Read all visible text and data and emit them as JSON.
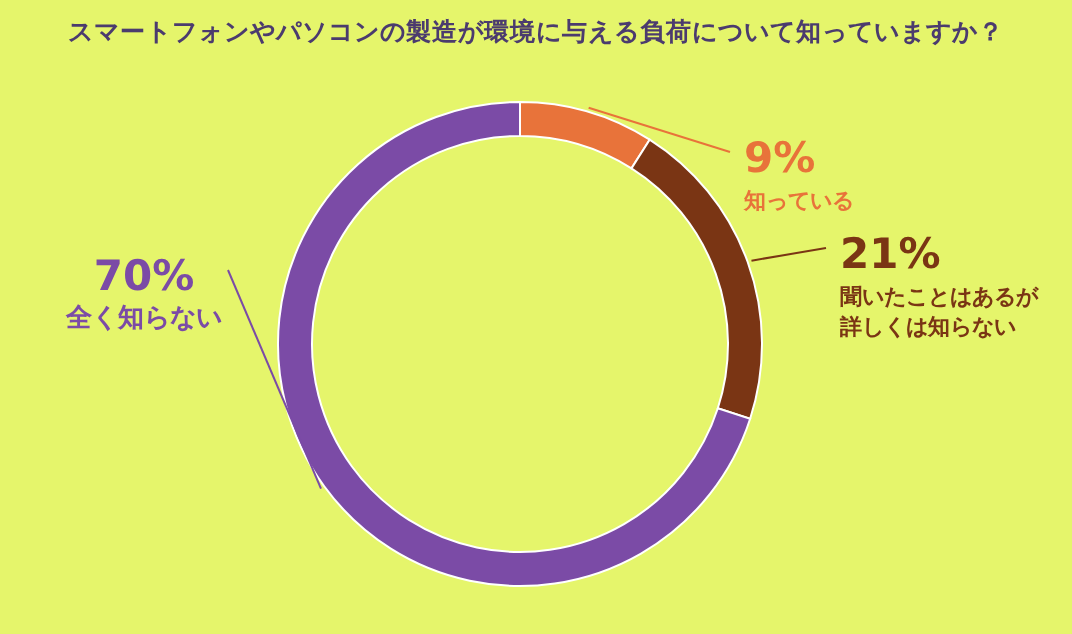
{
  "chart_data": {
    "type": "donut",
    "title": "スマートフォンやパソコンの製造が環境に与える負荷について知っていますか？",
    "categories": [
      "知っている",
      "聞いたことはあるが詳しくは知らない",
      "全く知らない"
    ],
    "values": [
      9,
      21,
      70
    ],
    "value_labels": [
      "9%",
      "21%",
      "70%"
    ],
    "colors": [
      "#e8733a",
      "#7a3514",
      "#7b4ba6"
    ],
    "legend": false
  }
}
